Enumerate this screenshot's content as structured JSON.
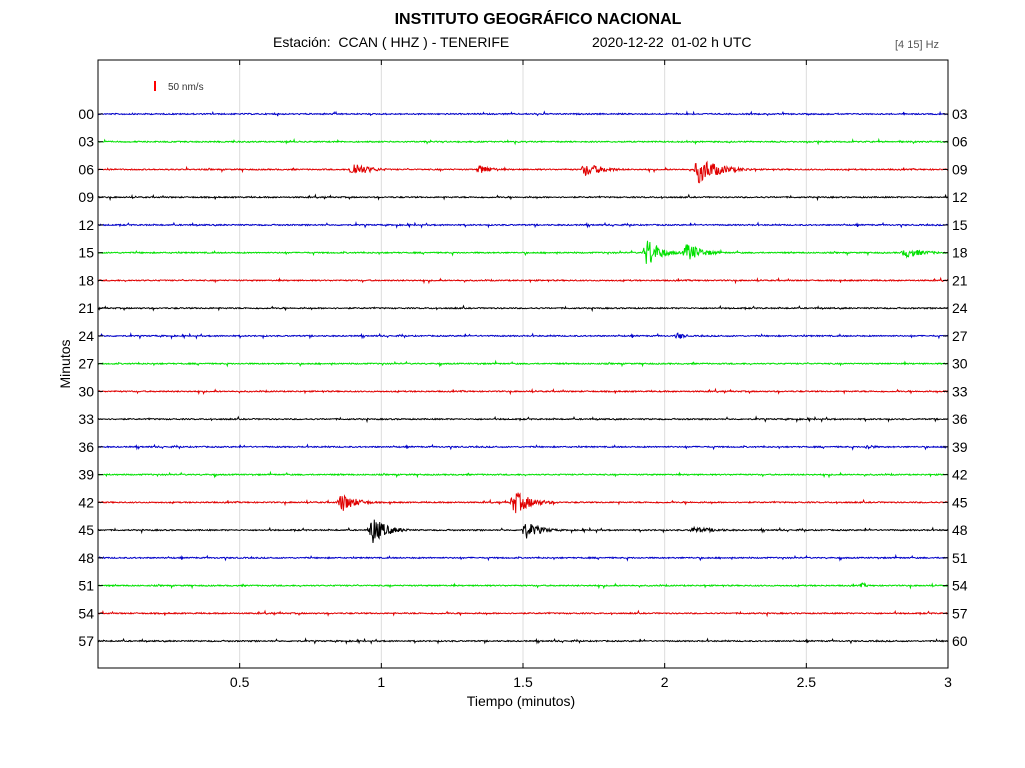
{
  "header": {
    "title": "INSTITUTO GEOGRÁFICO NACIONAL",
    "station_line": "Estación:  CCAN ( HHZ ) - TENERIFE",
    "datetime_line": "2020-12-22  01-02 h UTC",
    "frequency_band": "[4 15] Hz"
  },
  "chart_data": {
    "type": "line",
    "title": "INSTITUTO GEOGRÁFICO NACIONAL",
    "xlabel": "Tiempo (minutos)",
    "ylabel": "Minutos",
    "xlim": [
      0,
      3
    ],
    "x_ticks": [
      "0.5",
      "1",
      "1.5",
      "2",
      "2.5",
      "3"
    ],
    "x_tick_values": [
      0.5,
      1,
      1.5,
      2,
      2.5,
      3
    ],
    "grid": "vertical",
    "scale_bar_label": "50 nm/s",
    "scale_bar_color": "#ff0000",
    "colors": [
      "#0000c8",
      "#00e000",
      "#e00000",
      "#000000"
    ],
    "left_labels": [
      "00",
      "03",
      "06",
      "09",
      "12",
      "15",
      "18",
      "21",
      "24",
      "27",
      "30",
      "33",
      "36",
      "39",
      "42",
      "45",
      "48",
      "51",
      "54",
      "57"
    ],
    "right_labels": [
      "03",
      "06",
      "09",
      "12",
      "15",
      "18",
      "21",
      "24",
      "27",
      "30",
      "33",
      "36",
      "39",
      "42",
      "45",
      "48",
      "51",
      "54",
      "57",
      "60"
    ],
    "events": [
      {
        "trace": "06",
        "t": 0.9,
        "amp": 8,
        "dur": 0.15
      },
      {
        "trace": "06",
        "t": 1.35,
        "amp": 5,
        "dur": 0.12
      },
      {
        "trace": "06",
        "t": 1.72,
        "amp": 7,
        "dur": 0.18
      },
      {
        "trace": "06",
        "t": 2.12,
        "amp": 14,
        "dur": 0.2
      },
      {
        "trace": "15",
        "t": 1.94,
        "amp": 16,
        "dur": 0.12
      },
      {
        "trace": "15",
        "t": 2.08,
        "amp": 10,
        "dur": 0.15
      },
      {
        "trace": "15",
        "t": 2.85,
        "amp": 5,
        "dur": 0.2
      },
      {
        "trace": "24",
        "t": 2.05,
        "amp": 4,
        "dur": 0.06
      },
      {
        "trace": "36",
        "t": 2.72,
        "amp": 3,
        "dur": 0.06
      },
      {
        "trace": "42",
        "t": 0.86,
        "amp": 10,
        "dur": 0.14
      },
      {
        "trace": "42",
        "t": 1.47,
        "amp": 12,
        "dur": 0.17
      },
      {
        "trace": "45",
        "t": 0.97,
        "amp": 14,
        "dur": 0.14
      },
      {
        "trace": "45",
        "t": 1.51,
        "amp": 9,
        "dur": 0.14
      },
      {
        "trace": "45",
        "t": 2.1,
        "amp": 3,
        "dur": 0.3
      },
      {
        "trace": "51",
        "t": 2.7,
        "amp": 3,
        "dur": 0.04
      }
    ]
  }
}
